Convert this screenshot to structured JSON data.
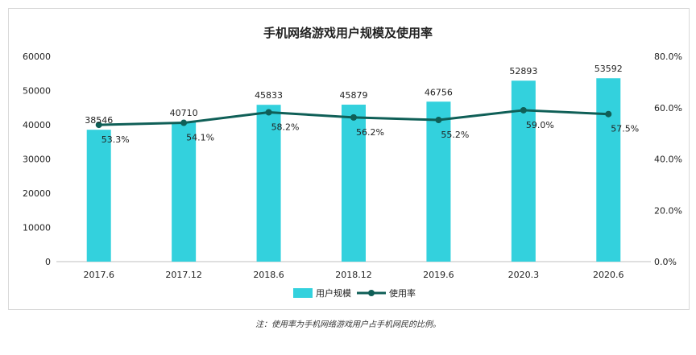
{
  "chart_data": {
    "type": "bar",
    "title": "手机网络游戏用户规模及使用率",
    "categories": [
      "2017.6",
      "2017.12",
      "2018.6",
      "2018.12",
      "2019.6",
      "2020.3",
      "2020.6"
    ],
    "series": [
      {
        "name": "用户规模",
        "type": "bar",
        "axis": "left",
        "color": "#33d1dd",
        "values": [
          38546,
          40710,
          45833,
          45879,
          46756,
          52893,
          53592
        ],
        "labels": [
          "38546",
          "40710",
          "45833",
          "45879",
          "46756",
          "52893",
          "53592"
        ]
      },
      {
        "name": "使用率",
        "type": "line",
        "axis": "right",
        "color": "#0f5f57",
        "values": [
          53.3,
          54.1,
          58.2,
          56.2,
          55.2,
          59.0,
          57.5
        ],
        "labels": [
          "53.3%",
          "54.1%",
          "58.2%",
          "56.2%",
          "55.2%",
          "59.0%",
          "57.5%"
        ]
      }
    ],
    "y_left": {
      "ylim": [
        0,
        60000
      ],
      "ticks": [
        "0",
        "10000",
        "20000",
        "30000",
        "40000",
        "50000",
        "60000"
      ]
    },
    "y_right": {
      "ylim": [
        0,
        80
      ],
      "ticks": [
        "0.0%",
        "20.0%",
        "40.0%",
        "60.0%",
        "80.0%"
      ]
    },
    "grid": false,
    "legend_position": "bottom"
  },
  "note": "注：使用率为手机网络游戏用户占手机网民的比例。"
}
